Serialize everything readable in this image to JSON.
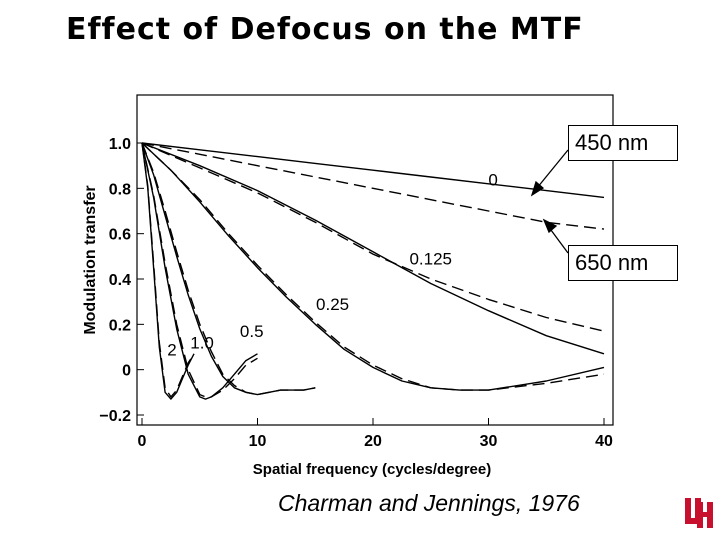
{
  "slide": {
    "title": "Effect of Defocus on the MTF",
    "citation": "Charman and Jennings, 1976",
    "logo_text": "UH"
  },
  "callouts": {
    "blue": "450 nm",
    "red": "650 nm"
  },
  "chart_data": {
    "type": "line",
    "title": "Effect of Defocus on the MTF",
    "xlabel": "Spatial frequency (cycles/degree)",
    "ylabel": "Modulation transfer",
    "xlim": [
      0,
      40
    ],
    "ylim": [
      -0.2,
      1.0
    ],
    "x_ticks": [
      "0",
      "10",
      "20",
      "30",
      "40"
    ],
    "y_ticks": [
      "1.0",
      "0.8",
      "0.6",
      "0.4",
      "0.2",
      "0",
      "−0.2"
    ],
    "grid": false,
    "line_color": "#000000",
    "series_labels": [
      "0",
      "0.125",
      "0.25",
      "0.5",
      "1.0",
      "2"
    ],
    "series": [
      {
        "label": "0",
        "style": "solid",
        "x": [
          0,
          5,
          10,
          15,
          20,
          25,
          30,
          35,
          40
        ],
        "y": [
          1.0,
          0.97,
          0.94,
          0.91,
          0.88,
          0.85,
          0.82,
          0.79,
          0.76
        ]
      },
      {
        "label": "0",
        "style": "dashed",
        "x": [
          0,
          5,
          10,
          15,
          20,
          25,
          30,
          35,
          40
        ],
        "y": [
          1.0,
          0.95,
          0.9,
          0.85,
          0.8,
          0.75,
          0.7,
          0.65,
          0.62
        ]
      },
      {
        "label": "0.125",
        "style": "solid",
        "x": [
          0,
          5,
          10,
          15,
          20,
          25,
          30,
          35,
          40
        ],
        "y": [
          1.0,
          0.9,
          0.79,
          0.66,
          0.52,
          0.38,
          0.26,
          0.15,
          0.07
        ]
      },
      {
        "label": "0.125",
        "style": "dashed",
        "x": [
          0,
          5,
          10,
          15,
          20,
          25,
          30,
          35,
          40
        ],
        "y": [
          1.0,
          0.89,
          0.78,
          0.65,
          0.51,
          0.4,
          0.31,
          0.23,
          0.17
        ]
      },
      {
        "label": "0.25",
        "style": "solid",
        "x": [
          0,
          2.5,
          5,
          7.5,
          10,
          12.5,
          15,
          17.5,
          20,
          22.5,
          25,
          27.5,
          30,
          35,
          40
        ],
        "y": [
          1.0,
          0.88,
          0.74,
          0.59,
          0.45,
          0.32,
          0.2,
          0.09,
          0.01,
          -0.05,
          -0.08,
          -0.09,
          -0.09,
          -0.05,
          0.01
        ]
      },
      {
        "label": "0.25",
        "style": "dashed",
        "x": [
          0,
          2.5,
          5,
          7.5,
          10,
          12.5,
          15,
          17.5,
          20,
          22.5,
          25,
          27.5,
          30,
          35,
          40
        ],
        "y": [
          1.0,
          0.88,
          0.75,
          0.6,
          0.46,
          0.33,
          0.21,
          0.1,
          0.02,
          -0.04,
          -0.08,
          -0.09,
          -0.09,
          -0.06,
          -0.02
        ]
      },
      {
        "label": "0.5",
        "style": "solid",
        "x": [
          0,
          1,
          2,
          3,
          4,
          5,
          6,
          7,
          8,
          9,
          10,
          11,
          12,
          13,
          14,
          15
        ],
        "y": [
          1.0,
          0.86,
          0.68,
          0.5,
          0.33,
          0.18,
          0.06,
          -0.03,
          -0.08,
          -0.1,
          -0.11,
          -0.1,
          -0.09,
          -0.09,
          -0.09,
          -0.08
        ]
      },
      {
        "label": "0.5",
        "style": "dashed",
        "x": [
          0,
          1,
          2,
          3,
          4,
          5,
          6,
          7,
          8,
          9,
          10,
          11,
          12,
          13,
          14,
          15
        ],
        "y": [
          1.0,
          0.87,
          0.7,
          0.52,
          0.35,
          0.2,
          0.08,
          -0.02,
          -0.07,
          -0.1,
          -0.11,
          -0.1,
          -0.09,
          -0.09,
          -0.09,
          -0.08
        ]
      },
      {
        "label": "1.0",
        "style": "solid",
        "x": [
          0,
          1,
          2,
          3,
          4,
          5,
          5.5,
          6,
          7,
          8,
          9,
          10
        ],
        "y": [
          1.0,
          0.76,
          0.45,
          0.18,
          -0.02,
          -0.12,
          -0.13,
          -0.12,
          -0.08,
          -0.02,
          0.04,
          0.07
        ]
      },
      {
        "label": "1.0",
        "style": "dashed",
        "x": [
          0,
          1,
          2,
          3,
          4,
          5,
          5.5,
          6,
          7,
          8,
          9,
          10
        ],
        "y": [
          1.0,
          0.77,
          0.47,
          0.2,
          0.0,
          -0.11,
          -0.12,
          -0.12,
          -0.09,
          -0.04,
          0.02,
          0.05
        ]
      },
      {
        "label": "2",
        "style": "solid",
        "x": [
          0,
          0.5,
          1,
          1.5,
          2,
          2.5,
          3,
          3.5,
          4,
          4.5
        ],
        "y": [
          1.0,
          0.8,
          0.45,
          0.1,
          -0.1,
          -0.13,
          -0.1,
          -0.04,
          0.02,
          0.07
        ]
      },
      {
        "label": "2",
        "style": "dashed",
        "x": [
          0,
          0.5,
          1,
          1.5,
          2,
          2.5,
          3,
          3.5,
          4,
          4.5
        ],
        "y": [
          1.0,
          0.81,
          0.47,
          0.12,
          -0.08,
          -0.12,
          -0.09,
          -0.03,
          0.03,
          0.07
        ]
      }
    ]
  }
}
